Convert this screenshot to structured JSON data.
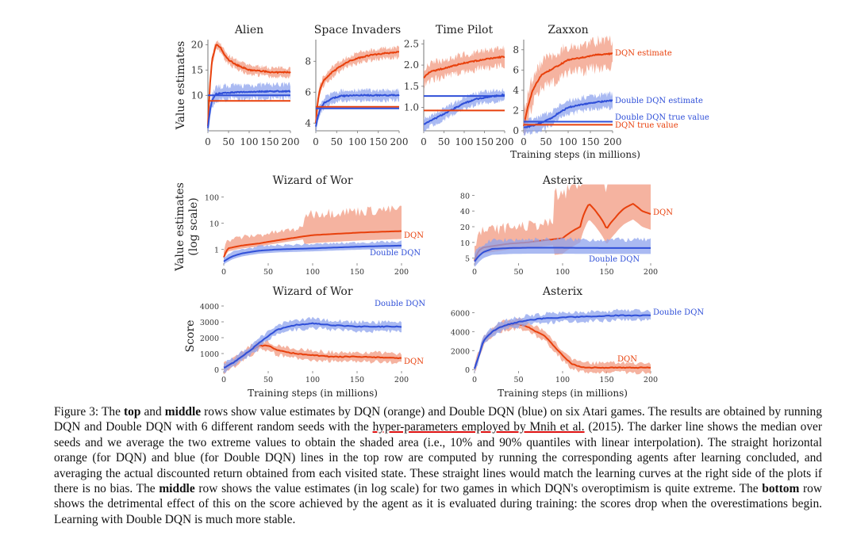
{
  "colors": {
    "dqn": "#e8400c",
    "ddqn": "#2f4fd8",
    "dqn_band": "#f29a80",
    "ddqn_band": "#8ea3ee",
    "axis": "#666666"
  },
  "chart_data": [
    {
      "type": "line",
      "title": "Alien",
      "ylabel": "Value estimates",
      "xlim": [
        0,
        200
      ],
      "ylim": [
        3,
        21
      ],
      "xticks": [
        0,
        50,
        100,
        150,
        200
      ],
      "xtick_labels": [
        "0",
        "50",
        "100",
        "150",
        "200"
      ],
      "yticks": [
        10,
        15,
        20
      ],
      "ytick_labels": [
        "10",
        "15",
        "20"
      ],
      "series": [
        {
          "name": "DQN estimate",
          "x": [
            0,
            5,
            10,
            20,
            30,
            40,
            50,
            70,
            100,
            130,
            160,
            200
          ],
          "y": [
            4,
            12,
            17,
            20,
            19.5,
            18,
            17,
            16,
            15,
            14.8,
            14.5,
            14.6
          ],
          "band": 0.8
        },
        {
          "name": "Double DQN estimate",
          "x": [
            0,
            5,
            10,
            20,
            40,
            70,
            100,
            150,
            200
          ],
          "y": [
            3.5,
            7,
            9,
            10.3,
            10.5,
            10.6,
            10.7,
            10.8,
            10.8
          ],
          "band": 1.2
        }
      ],
      "hlines": [
        {
          "name": "DQN true value",
          "y": 8.9
        },
        {
          "name": "Double DQN true value",
          "y": 10.0
        }
      ]
    },
    {
      "type": "line",
      "title": "Space Invaders",
      "xlim": [
        0,
        200
      ],
      "ylim": [
        3.5,
        9.4
      ],
      "xticks": [
        0,
        50,
        100,
        150,
        200
      ],
      "xtick_labels": [
        "0",
        "50",
        "100",
        "150",
        "200"
      ],
      "yticks": [
        4,
        6,
        8
      ],
      "ytick_labels": [
        "4",
        "6",
        "8"
      ],
      "series": [
        {
          "name": "DQN estimate",
          "x": [
            0,
            5,
            10,
            20,
            40,
            60,
            80,
            100,
            130,
            160,
            200
          ],
          "y": [
            4,
            5.5,
            6.2,
            6.8,
            7.3,
            7.7,
            8.0,
            8.2,
            8.4,
            8.5,
            8.6
          ],
          "band": 0.3
        },
        {
          "name": "Double DQN estimate",
          "x": [
            0,
            5,
            10,
            20,
            40,
            60,
            100,
            150,
            200
          ],
          "y": [
            3.8,
            4.4,
            4.9,
            5.3,
            5.6,
            5.75,
            5.8,
            5.8,
            5.8
          ],
          "band": 0.3
        }
      ],
      "hlines": [
        {
          "name": "DQN true value",
          "y": 5.05
        },
        {
          "name": "Double DQN true value",
          "y": 4.95
        }
      ]
    },
    {
      "type": "line",
      "title": "Time Pilot",
      "xlim": [
        0,
        200
      ],
      "ylim": [
        0.45,
        2.6
      ],
      "xticks": [
        0,
        50,
        100,
        150,
        200
      ],
      "xtick_labels": [
        "0",
        "50",
        "100",
        "150",
        "200"
      ],
      "yticks": [
        1.0,
        1.5,
        2.0,
        2.5
      ],
      "ytick_labels": [
        "1.0",
        "1.5",
        "2.0",
        "2.5"
      ],
      "series": [
        {
          "name": "DQN estimate",
          "x": [
            0,
            5,
            10,
            20,
            40,
            60,
            80,
            100,
            130,
            160,
            200
          ],
          "y": [
            1.7,
            1.75,
            1.8,
            1.85,
            1.9,
            1.95,
            2.0,
            2.05,
            2.1,
            2.15,
            2.2
          ],
          "band": 0.18
        },
        {
          "name": "Double DQN estimate",
          "x": [
            0,
            10,
            20,
            40,
            60,
            80,
            100,
            130,
            160,
            200
          ],
          "y": [
            0.6,
            0.65,
            0.7,
            0.8,
            0.9,
            1.0,
            1.1,
            1.2,
            1.25,
            1.3
          ],
          "band": 0.12
        }
      ],
      "hlines": [
        {
          "name": "DQN true value",
          "y": 0.93
        },
        {
          "name": "Double DQN true value",
          "y": 1.27
        }
      ]
    },
    {
      "type": "line",
      "title": "Zaxxon",
      "xlabel": "Training steps (in millions)",
      "xlim": [
        0,
        200
      ],
      "ylim": [
        0,
        9
      ],
      "xticks": [
        0,
        50,
        100,
        150,
        200
      ],
      "xtick_labels": [
        "0",
        "50",
        "100",
        "150",
        "200"
      ],
      "yticks": [
        0,
        2,
        4,
        6,
        8
      ],
      "ytick_labels": [
        "0",
        "2",
        "4",
        "6",
        "8"
      ],
      "series": [
        {
          "name": "DQN estimate",
          "x": [
            0,
            5,
            10,
            20,
            30,
            40,
            60,
            80,
            100,
            130,
            160,
            200
          ],
          "y": [
            0.5,
            1.5,
            2.5,
            4.0,
            4.8,
            5.5,
            6.0,
            6.5,
            7.0,
            7.2,
            7.5,
            7.6
          ],
          "band": 1.2
        },
        {
          "name": "Double DQN estimate",
          "x": [
            0,
            20,
            40,
            60,
            80,
            100,
            130,
            160,
            200
          ],
          "y": [
            0.3,
            0.5,
            0.8,
            1.2,
            1.8,
            2.3,
            2.6,
            2.8,
            3.0
          ],
          "band": 0.6
        }
      ],
      "hlines": [
        {
          "name": "DQN true value",
          "y": 0.6
        },
        {
          "name": "Double DQN true value",
          "y": 0.9
        }
      ],
      "labels": {
        "dqn_estimate": "DQN estimate",
        "ddqn_estimate": "Double DQN estimate",
        "ddqn_true": "Double DQN true value",
        "dqn_true": "DQN true value"
      }
    },
    {
      "type": "line",
      "title": "Wizard of Wor",
      "ylabel": "Value estimates (log scale)",
      "yscale": "log",
      "xlim": [
        0,
        200
      ],
      "ylim": [
        0.3,
        180
      ],
      "xticks": [
        0,
        50,
        100,
        150,
        200
      ],
      "xtick_labels": [
        "0",
        "50",
        "100",
        "150",
        "200"
      ],
      "yticks": [
        1,
        10,
        100
      ],
      "ytick_labels": [
        "1",
        "10",
        "100"
      ],
      "series": [
        {
          "name": "DQN",
          "x": [
            0,
            5,
            10,
            20,
            40,
            60,
            80,
            100,
            130,
            160,
            200
          ],
          "y": [
            0.5,
            1.1,
            1.2,
            1.4,
            1.7,
            2.2,
            2.8,
            3.5,
            4.0,
            4.5,
            5.0
          ]
        },
        {
          "name": "Double DQN",
          "x": [
            0,
            10,
            20,
            40,
            60,
            80,
            100,
            130,
            160,
            200
          ],
          "y": [
            0.35,
            0.55,
            0.7,
            0.9,
            1.0,
            1.05,
            1.1,
            1.2,
            1.3,
            1.4
          ]
        }
      ],
      "labels": {
        "dqn": "DQN",
        "ddqn": "Double DQN"
      }
    },
    {
      "type": "line",
      "title": "Asterix",
      "yscale": "log",
      "xlim": [
        0,
        200
      ],
      "ylim": [
        4,
        100
      ],
      "xticks": [
        0,
        50,
        100,
        150,
        200
      ],
      "xtick_labels": [
        "0",
        "50",
        "100",
        "150",
        "200"
      ],
      "yticks": [
        5,
        10,
        20,
        40,
        80
      ],
      "ytick_labels": [
        "5",
        "10",
        "20",
        "40",
        "80"
      ],
      "series": [
        {
          "name": "DQN",
          "x": [
            0,
            5,
            10,
            20,
            40,
            60,
            80,
            100,
            120,
            130,
            140,
            150,
            160,
            170,
            180,
            190,
            200
          ],
          "y": [
            4.5,
            7,
            8,
            8.5,
            9.5,
            10,
            11,
            12,
            20,
            55,
            35,
            18,
            30,
            45,
            55,
            40,
            35
          ]
        },
        {
          "name": "Double DQN",
          "x": [
            0,
            5,
            10,
            20,
            40,
            60,
            100,
            150,
            200
          ],
          "y": [
            4.3,
            5.5,
            6.5,
            7.5,
            7.8,
            7.9,
            7.9,
            7.8,
            7.8
          ]
        }
      ],
      "labels": {
        "dqn": "DQN",
        "ddqn": "Double DQN"
      }
    },
    {
      "type": "line",
      "title": "Wizard of Wor",
      "ylabel": "Score",
      "xlabel": "Training steps (in millions)",
      "xlim": [
        0,
        200
      ],
      "ylim": [
        -100,
        4300
      ],
      "xticks": [
        0,
        50,
        100,
        150,
        200
      ],
      "xtick_labels": [
        "0",
        "50",
        "100",
        "150",
        "200"
      ],
      "yticks": [
        0,
        1000,
        2000,
        3000,
        4000
      ],
      "ytick_labels": [
        "0",
        "1000",
        "2000",
        "3000",
        "4000"
      ],
      "series": [
        {
          "name": "DQN",
          "x": [
            0,
            10,
            20,
            30,
            40,
            50,
            60,
            80,
            100,
            120,
            150,
            180,
            200
          ],
          "y": [
            100,
            400,
            800,
            1200,
            1500,
            1500,
            1200,
            1000,
            900,
            800,
            800,
            750,
            700
          ]
        },
        {
          "name": "Double DQN",
          "x": [
            0,
            10,
            20,
            30,
            40,
            50,
            60,
            80,
            100,
            120,
            150,
            180,
            200
          ],
          "y": [
            100,
            400,
            800,
            1200,
            1700,
            2100,
            2500,
            2800,
            2900,
            2800,
            2700,
            2700,
            2700
          ]
        }
      ],
      "labels": {
        "dqn": "DQN",
        "ddqn": "Double DQN"
      }
    },
    {
      "type": "line",
      "title": "Asterix",
      "xlabel": "Training steps (in millions)",
      "xlim": [
        0,
        200
      ],
      "ylim": [
        -150,
        7200
      ],
      "xticks": [
        0,
        50,
        100,
        150,
        200
      ],
      "xtick_labels": [
        "0",
        "50",
        "100",
        "150",
        "200"
      ],
      "yticks": [
        0,
        2000,
        4000,
        6000
      ],
      "ytick_labels": [
        "0",
        "2000",
        "4000",
        "6000"
      ],
      "series": [
        {
          "name": "DQN",
          "x": [
            0,
            5,
            10,
            20,
            30,
            40,
            50,
            60,
            70,
            80,
            90,
            100,
            110,
            120,
            130,
            140,
            150,
            170,
            200
          ],
          "y": [
            100,
            1500,
            3000,
            4000,
            4500,
            4700,
            4800,
            4500,
            4000,
            3500,
            2500,
            1500,
            600,
            300,
            200,
            200,
            200,
            200,
            200
          ]
        },
        {
          "name": "Double DQN",
          "x": [
            0,
            5,
            10,
            20,
            30,
            40,
            50,
            60,
            80,
            100,
            130,
            160,
            200
          ],
          "y": [
            100,
            1500,
            3000,
            4000,
            4500,
            4800,
            5000,
            5200,
            5400,
            5500,
            5600,
            5700,
            5700
          ]
        }
      ],
      "labels": {
        "dqn": "DQN",
        "ddqn": "Double DQN"
      }
    }
  ],
  "caption": {
    "label": "Figure 3:",
    "t1": "The",
    "b_top": "top",
    "t2": "and",
    "b_middle": "middle",
    "t3": "rows show value estimates by DQN (orange) and Double DQN (blue) on six Atari games. The results are obtained by running DQN and Double DQN with 6 different random seeds with the",
    "link": "hyper-parameters employed by Mnih et al.",
    "t4": "(2015). The darker line shows the median over seeds and we average the two extreme values to obtain the shaded area (i.e., 10% and 90% quantiles with linear interpolation). The straight horizontal orange (for DQN) and blue (for Double DQN) lines in the top row are computed by running the corresponding agents after learning concluded, and averaging the actual discounted return obtained from each visited state. These straight lines would match the learning curves at the right side of the plots if there is no bias. The",
    "b_middle2": "middle",
    "t5": "row shows the value estimates (in log scale) for two games in which DQN's overoptimism is quite extreme. The",
    "b_bottom": "bottom",
    "t6": "row shows the detrimental effect of this on the score achieved by the agent as it is evaluated during training: the scores drop when the overestimations begin. Learning with Double DQN is much more stable."
  }
}
